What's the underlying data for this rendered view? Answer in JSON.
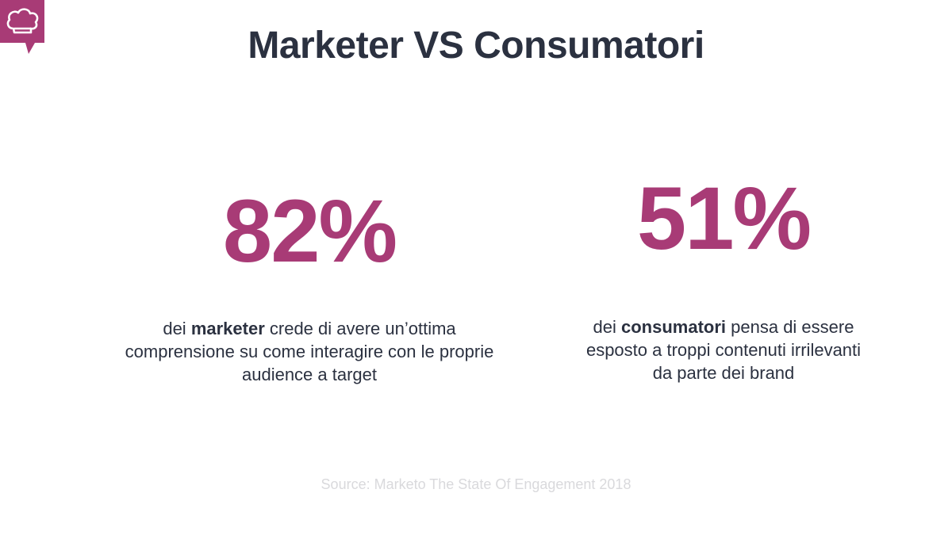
{
  "title": "Marketer VS Consumatori",
  "logo": {
    "icon": "chef-hat-speech-bubble-icon",
    "color": "#a83b76"
  },
  "stats": [
    {
      "value": "82%",
      "line1_pre": "dei ",
      "line1_bold": "marketer",
      "line1_post": " crede di avere un’ottima",
      "line2": "comprensione su come interagire con le proprie",
      "line3": "audience a target"
    },
    {
      "value": "51%",
      "line1_pre": "dei ",
      "line1_bold": "consumatori",
      "line1_post": " pensa di essere",
      "line2": "esposto a troppi contenuti irrilevanti",
      "line3": "da parte dei brand"
    }
  ],
  "source": "Source: Marketo The State Of Engagement 2018",
  "colors": {
    "accent": "#a83b76",
    "text": "#2b3140",
    "muted": "#d9d9dc"
  }
}
